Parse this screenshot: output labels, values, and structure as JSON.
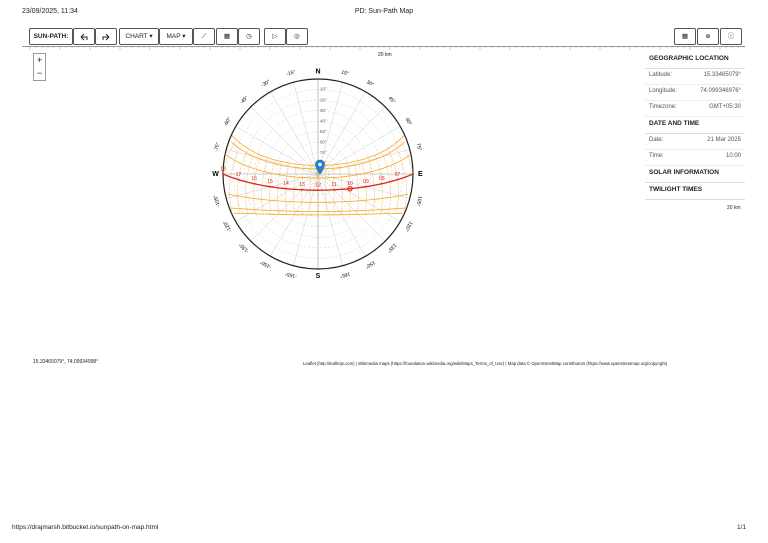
{
  "header": {
    "datetime": "23/09/2025, 11:34",
    "title": "PD: Sun-Path Map"
  },
  "toolbar": {
    "label": "SUN-PATH:",
    "chart": "CHART",
    "map": "MAP"
  },
  "map": {
    "zoom_in": "+",
    "zoom_out": "−",
    "scale_top": "20 km",
    "scale_right": "20 km",
    "coordinates": "15.33465079°, 74.09934998°",
    "attribution": "Leaflet (http://leafletjs.com) | Wikimedia maps (https://foundation.wikimedia.org/wiki/Maps_Terms_of_Use) | Map data © OpenStreetMap contributors (https://www.openstreetmap.org/copyright)"
  },
  "diagram": {
    "cardinals": [
      "N",
      "E",
      "S",
      "W"
    ],
    "azimuths": [
      {
        "value": 15,
        "label": "15°"
      },
      {
        "value": 30,
        "label": "30°"
      },
      {
        "value": 45,
        "label": "45°"
      },
      {
        "value": 60,
        "label": "60°"
      },
      {
        "value": 75,
        "label": "75°"
      },
      {
        "value": 105,
        "label": "105°"
      },
      {
        "value": 120,
        "label": "120°"
      },
      {
        "value": 135,
        "label": "135°"
      },
      {
        "value": 150,
        "label": "150°"
      },
      {
        "value": 165,
        "label": "165°"
      },
      {
        "value": -15,
        "label": "-15°"
      },
      {
        "value": -30,
        "label": "-30°"
      },
      {
        "value": -45,
        "label": "-45°"
      },
      {
        "value": -60,
        "label": "-60°"
      },
      {
        "value": -75,
        "label": "-75°"
      },
      {
        "value": -105,
        "label": "-105°"
      },
      {
        "value": -120,
        "label": "-120°"
      },
      {
        "value": -135,
        "label": "-135°"
      },
      {
        "value": -150,
        "label": "-150°"
      },
      {
        "value": -165,
        "label": "-165°"
      }
    ],
    "altitudes": [
      {
        "value": 10,
        "label": "10°"
      },
      {
        "value": 20,
        "label": "20°"
      },
      {
        "value": 30,
        "label": "30°"
      },
      {
        "value": 40,
        "label": "40°"
      },
      {
        "value": 50,
        "label": "50°"
      },
      {
        "value": 60,
        "label": "60°"
      },
      {
        "value": 70,
        "label": "70°"
      },
      {
        "value": 80,
        "label": "80°"
      }
    ],
    "hours": [
      "07",
      "08",
      "09",
      "10",
      "11",
      "12",
      "13",
      "14",
      "15",
      "16",
      "17",
      "18"
    ]
  },
  "panel": [
    {
      "title": "GEOGRAPHIC LOCATION",
      "rows": [
        [
          "Latitude:",
          "15.33465079°"
        ],
        [
          "Longitude:",
          "74.099346976°"
        ],
        [
          "Timezone:",
          "GMT+05:30"
        ]
      ]
    },
    {
      "title": "DATE AND TIME",
      "rows": [
        [
          "Date:",
          "21 Mar 2025"
        ],
        [
          "Time:",
          "10:00"
        ]
      ]
    },
    {
      "title": "SOLAR INFORMATION",
      "rows": []
    },
    {
      "title": "TWILIGHT TIMES",
      "rows": []
    }
  ],
  "footer": {
    "url": "https://drajmarsh.bitbucket.io/sunpath-on-map.html",
    "page": "1/1"
  }
}
